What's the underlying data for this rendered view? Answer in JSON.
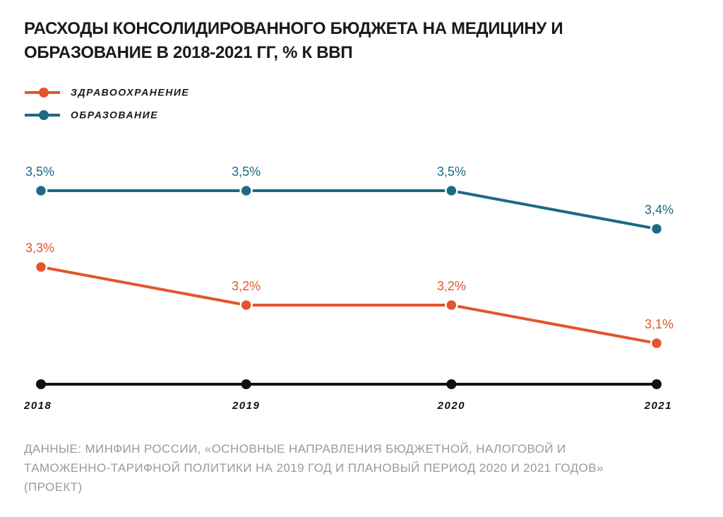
{
  "chart_data": {
    "type": "line",
    "title": "РАСХОДЫ КОНСОЛИДИРОВАННОГО БЮДЖЕТА НА МЕДИЦИНУ И ОБРАЗОВАНИЕ В 2018-2021 ГГ, % К ВВП",
    "categories": [
      "2018",
      "2019",
      "2020",
      "2021"
    ],
    "series": [
      {
        "name": "ЗДРАВООХРАНЕНИЕ",
        "color": "#e4552b",
        "values": [
          3.3,
          3.2,
          3.2,
          3.1
        ],
        "value_labels": [
          "3,3%",
          "3,2%",
          "3,2%",
          "3,1%"
        ]
      },
      {
        "name": "ОБРАЗОВАНИЕ",
        "color": "#1d6a84",
        "values": [
          3.5,
          3.5,
          3.5,
          3.4
        ],
        "value_labels": [
          "3,5%",
          "3,5%",
          "3,5%",
          "3,4%"
        ]
      }
    ],
    "source": "ДАННЫЕ: МИНФИН РОССИИ, «ОСНОВНЫЕ НАПРАВЛЕНИЯ БЮДЖЕТНОЙ, НАЛОГОВОЙ И ТАМОЖЕННО-ТАРИФНОЙ ПОЛИТИКИ НА 2019 ГОД И ПЛАНОВЫЙ ПЕРИОД 2020 И 2021 ГОДОВ» (ПРОЕКТ)"
  }
}
